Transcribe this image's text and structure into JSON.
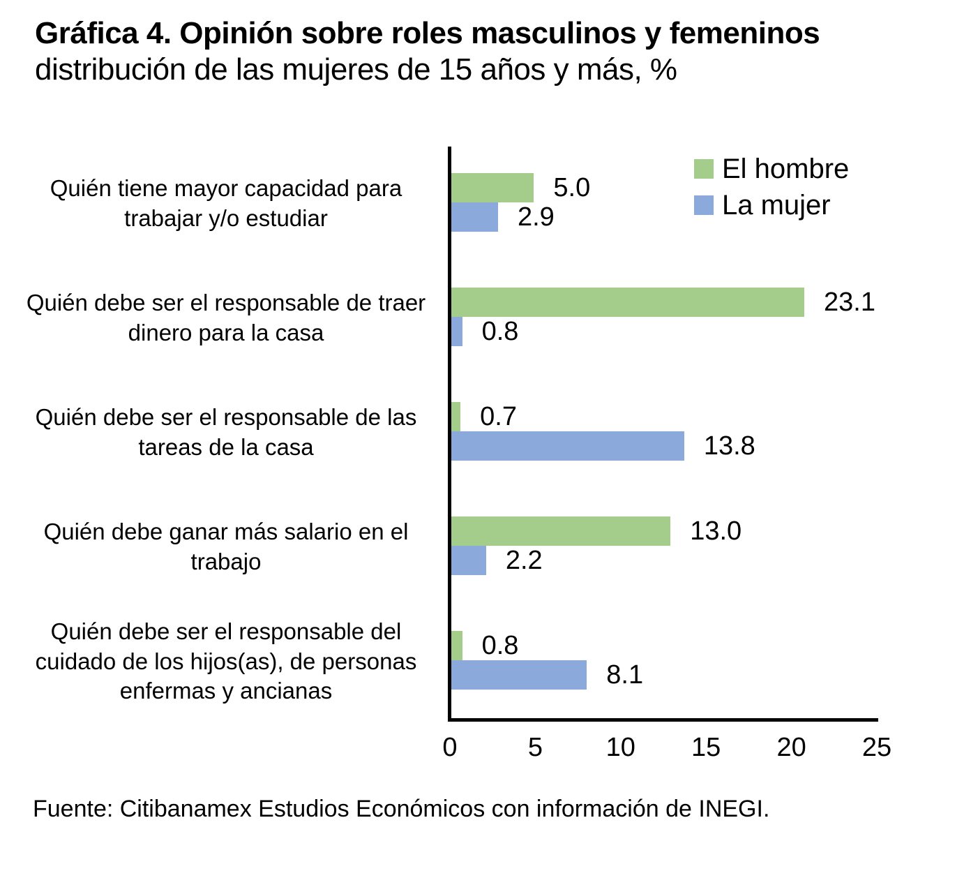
{
  "source": "Fuente: Citibanamex Estudios Económicos con información de INEGI.",
  "colors": {
    "hombre": "#a4cc8b",
    "mujer": "#8ca9db",
    "axis": "#000000",
    "text": "#000000",
    "background": "#ffffff"
  },
  "chart_data": {
    "type": "bar",
    "orientation": "horizontal",
    "title": "Gráfica 4. Opinión sobre roles masculinos y femeninos",
    "subtitle": "distribución de las mujeres de 15 años y más, %",
    "categories": [
      "Quién tiene mayor capacidad para trabajar y/o estudiar",
      "Quién debe ser el responsable de traer dinero para la casa",
      "Quién debe ser el responsable de las tareas de la casa",
      "Quién debe ganar más salario en el trabajo",
      "Quién debe ser el responsable del cuidado de los hijos(as), de personas enfermas y ancianas"
    ],
    "series": [
      {
        "name": "El hombre",
        "color": "#a4cc8b",
        "values": [
          5.0,
          23.1,
          0.7,
          13.0,
          0.8
        ]
      },
      {
        "name": "La mujer",
        "color": "#8ca9db",
        "values": [
          2.9,
          0.8,
          13.8,
          2.2,
          8.1
        ]
      }
    ],
    "xlim": [
      0,
      25
    ],
    "x_ticks": [
      0,
      5,
      10,
      15,
      20,
      25
    ],
    "value_label_decimals": 1,
    "legend_position": "top-right",
    "grid": false
  }
}
